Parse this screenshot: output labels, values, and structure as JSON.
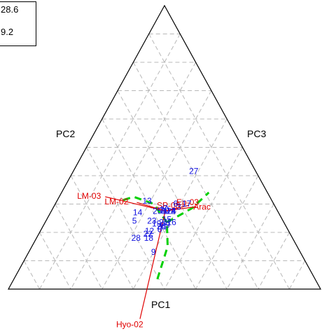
{
  "info_box": {
    "lines": [
      "28.6",
      "9.2"
    ]
  },
  "chart_data": {
    "type": "scatter",
    "subtype": "ternary biplot",
    "title": "",
    "axes": [
      "PC1",
      "PC2",
      "PC3"
    ],
    "grid": true,
    "colors": {
      "frame": "#000000",
      "grid": "#b8b8b8",
      "points": "#1010e0",
      "vectors": "#e00000",
      "trend": "#00d000"
    },
    "points": [
      {
        "label": "1",
        "pc1": 0.45,
        "pc2": 0.27,
        "pc3": 0.28
      },
      {
        "label": "2",
        "pc1": 0.45,
        "pc2": 0.22,
        "pc3": 0.33
      },
      {
        "label": "3",
        "pc1": 0.42,
        "pc2": 0.2,
        "pc3": 0.38
      },
      {
        "label": "4",
        "pc1": 0.45,
        "pc2": 0.22,
        "pc3": 0.33
      },
      {
        "label": "5",
        "pc1": 0.52,
        "pc2": 0.43,
        "pc3": 0.05
      },
      {
        "label": "6",
        "pc1": 0.4,
        "pc2": 0.23,
        "pc3": 0.37
      },
      {
        "label": "7",
        "pc1": 0.43,
        "pc2": 0.28,
        "pc3": 0.29
      },
      {
        "label": "8",
        "pc1": 0.58,
        "pc2": 0.24,
        "pc3": 0.18
      },
      {
        "label": "9",
        "pc1": 0.74,
        "pc2": 0.2,
        "pc3": 0.06
      },
      {
        "label": "10",
        "pc1": 0.44,
        "pc2": 0.28,
        "pc3": 0.28
      },
      {
        "label": "11",
        "pc1": 0.56,
        "pc2": 0.23,
        "pc3": 0.21
      },
      {
        "label": "12",
        "pc1": 0.59,
        "pc2": 0.3,
        "pc3": 0.11
      },
      {
        "label": "13",
        "pc1": 0.38,
        "pc2": 0.42,
        "pc3": 0.2
      },
      {
        "label": "14",
        "pc1": 0.46,
        "pc2": 0.44,
        "pc3": 0.1
      },
      {
        "label": "15",
        "pc1": 0.51,
        "pc2": 0.23,
        "pc3": 0.26
      },
      {
        "label": "16",
        "pc1": 0.53,
        "pc2": 0.19,
        "pc3": 0.28
      },
      {
        "label": "17",
        "pc1": 0.4,
        "pc2": 0.16,
        "pc3": 0.44
      },
      {
        "label": "18",
        "pc1": 0.64,
        "pc2": 0.28,
        "pc3": 0.08
      },
      {
        "label": "19",
        "pc1": 0.54,
        "pc2": 0.28,
        "pc3": 0.18
      },
      {
        "label": "20",
        "pc1": 0.44,
        "pc2": 0.28,
        "pc3": 0.28
      },
      {
        "label": "21",
        "pc1": 0.53,
        "pc2": 0.24,
        "pc3": 0.23
      },
      {
        "label": "22",
        "pc1": 0.61,
        "pc2": 0.3,
        "pc3": 0.09
      },
      {
        "label": "23",
        "pc1": 0.52,
        "pc2": 0.32,
        "pc3": 0.16
      },
      {
        "label": "24",
        "pc1": 0.45,
        "pc2": 0.23,
        "pc3": 0.32
      },
      {
        "label": "25",
        "pc1": 0.45,
        "pc2": 0.32,
        "pc3": 0.23
      },
      {
        "label": "26",
        "pc1": 0.56,
        "pc2": 0.24,
        "pc3": 0.2
      },
      {
        "label": "27",
        "pc1": 0.17,
        "pc2": 0.23,
        "pc3": 0.6
      },
      {
        "label": "28",
        "pc1": 0.64,
        "pc2": 0.36,
        "pc3": 0.0
      },
      {
        "label": "29",
        "pc1": 0.55,
        "pc2": 0.22,
        "pc3": 0.23
      },
      {
        "label": "30",
        "pc1": 0.45,
        "pc2": 0.27,
        "pc3": 0.28
      }
    ],
    "vectors": [
      {
        "label": "LM-03",
        "pc1": 0.35,
        "pc2": 0.7,
        "pc3": -0.05
      },
      {
        "label": "LM-02",
        "pc1": 0.39,
        "pc2": 0.48,
        "pc3": 0.13
      },
      {
        "label": "Hyo-02",
        "pc1": 1.21,
        "pc2": 0.05,
        "pc3": -0.26
      },
      {
        "label": "Arac",
        "pc1": 0.42,
        "pc2": 0.09,
        "pc3": 0.49
      },
      {
        "label": "SP-08",
        "pc1": 0.43,
        "pc2": 0.21,
        "pc3": 0.36
      },
      {
        "label": "Ep-03",
        "pc1": 0.41,
        "pc2": 0.14,
        "pc3": 0.45
      }
    ],
    "trend_paths": [
      [
        {
          "pc1": 0.93,
          "pc2": 0.08,
          "pc3": -0.01
        },
        {
          "pc1": 0.7,
          "pc2": 0.13,
          "pc3": 0.17
        },
        {
          "pc1": 0.53,
          "pc2": 0.22,
          "pc3": 0.25
        }
      ],
      [
        {
          "pc1": 0.53,
          "pc2": 0.22,
          "pc3": 0.25
        },
        {
          "pc1": 0.4,
          "pc2": 0.37,
          "pc3": 0.23
        },
        {
          "pc1": 0.35,
          "pc2": 0.52,
          "pc3": 0.13
        },
        {
          "pc1": 0.38,
          "pc2": 0.59,
          "pc3": 0.03
        }
      ],
      [
        {
          "pc1": 0.53,
          "pc2": 0.22,
          "pc3": 0.25
        },
        {
          "pc1": 0.43,
          "pc2": 0.11,
          "pc3": 0.46
        },
        {
          "pc1": 0.32,
          "pc2": 0.06,
          "pc3": 0.62
        }
      ]
    ]
  }
}
